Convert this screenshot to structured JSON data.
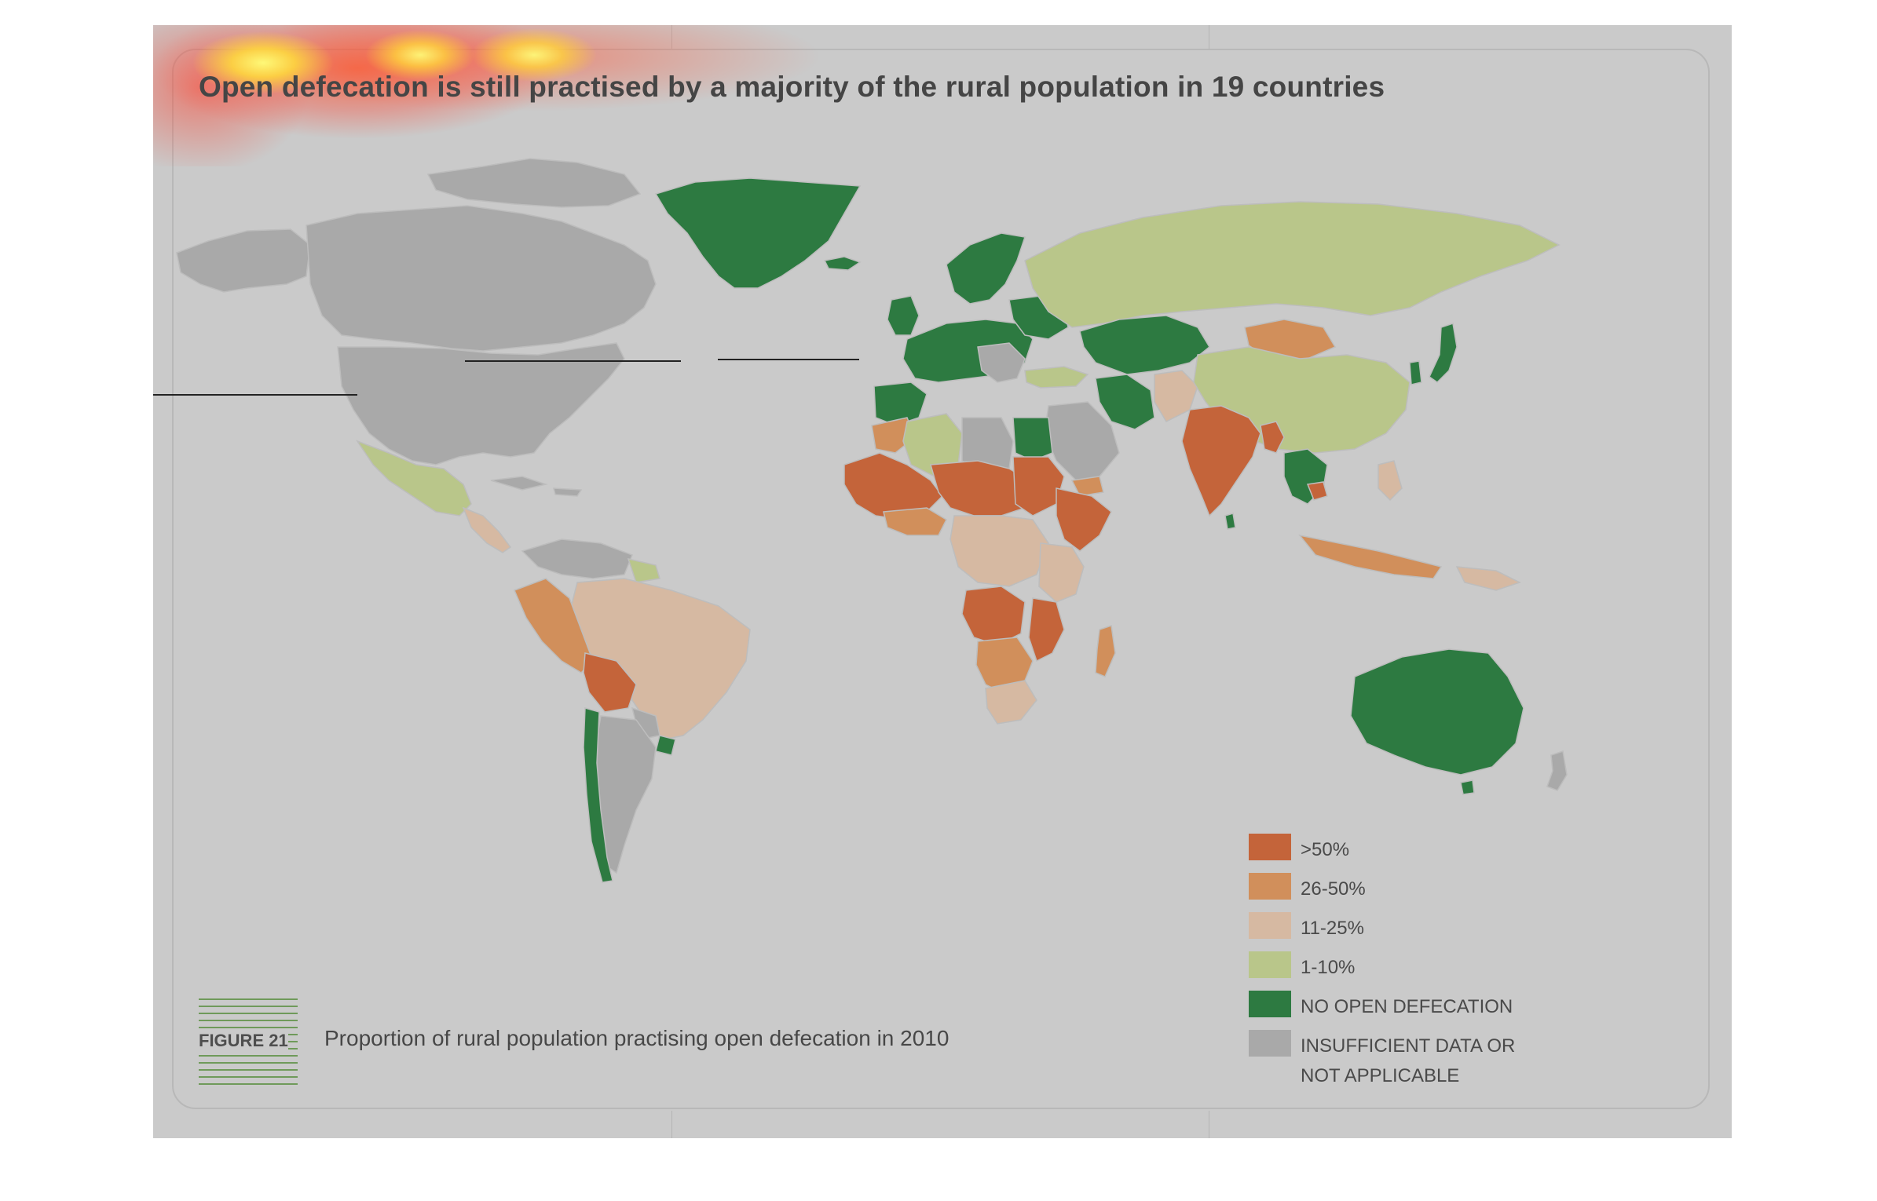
{
  "map": {
    "title": "Open defecation is still practised by a majority of the rural population in 19 countries"
  },
  "colors": {
    "background": "#cacaca",
    "over_50": "#c4643a",
    "range_26_50": "#d18f5b",
    "range_11_25": "#d6b9a2",
    "range_1_10": "#b9c68a",
    "no_open_defecation": "#2d7a41",
    "insufficient_data": "#a9a9a9",
    "ocean": "#cacaca"
  },
  "legend": {
    "items": [
      {
        "label": ">50%",
        "color": "#c4643a"
      },
      {
        "label": "26-50%",
        "color": "#d18f5b"
      },
      {
        "label": "11-25%",
        "color": "#d6b9a2"
      },
      {
        "label": "1-10%",
        "color": "#b9c68a"
      },
      {
        "label": "NO OPEN DEFECATION",
        "color": "#2d7a41"
      },
      {
        "label": "INSUFFICIENT DATA OR\nNOT APPLICABLE",
        "color": "#a9a9a9"
      }
    ]
  },
  "figure": {
    "tag": "FIGURE 21",
    "caption": "Proportion of rural population practising open defecation in 2010"
  }
}
